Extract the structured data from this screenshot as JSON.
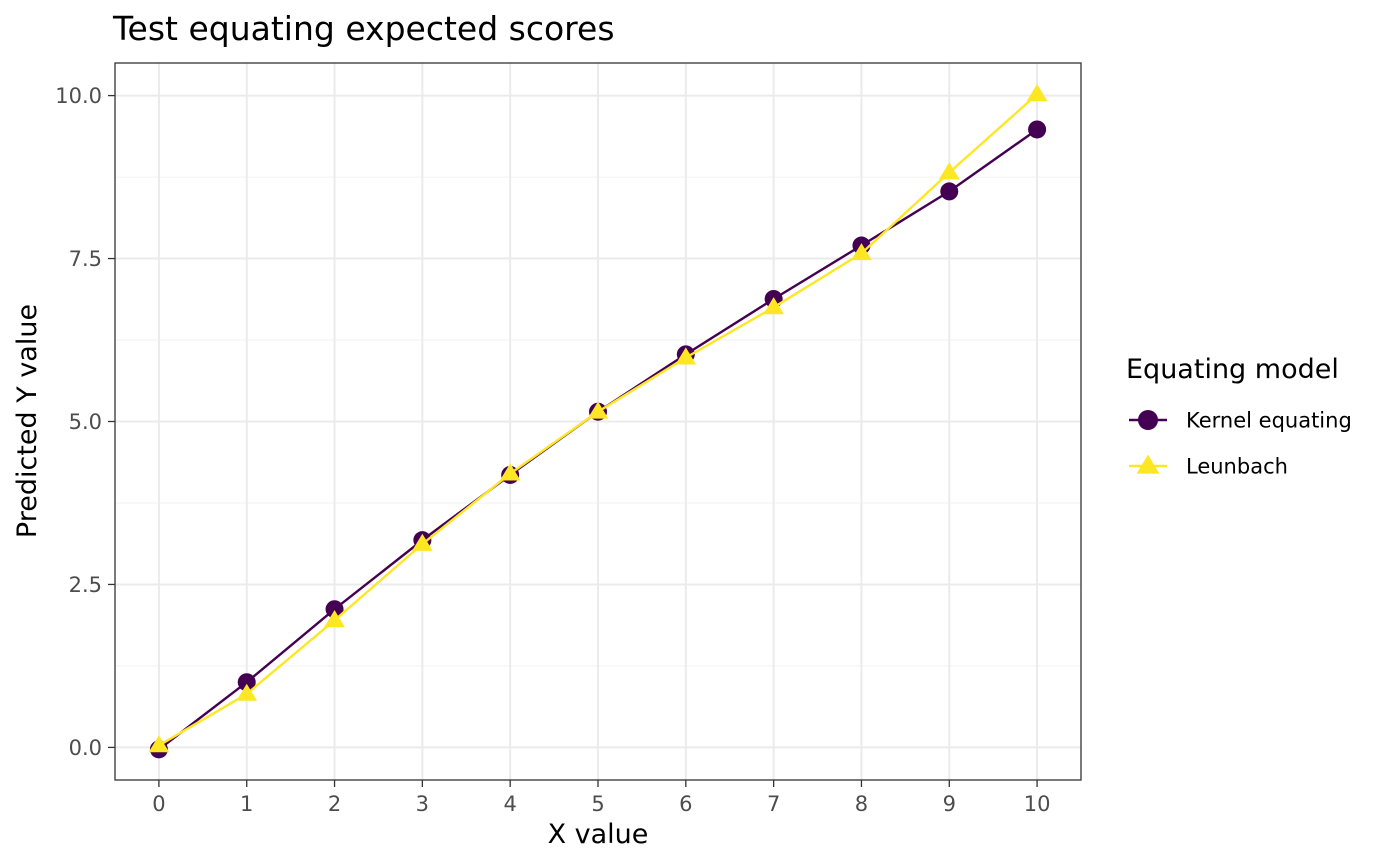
{
  "chart_data": {
    "type": "line",
    "title": "Test equating expected scores",
    "xlabel": "X value",
    "ylabel": "Predicted Y value",
    "x": [
      0,
      1,
      2,
      3,
      4,
      5,
      6,
      7,
      8,
      9,
      10
    ],
    "xticks": [
      "0",
      "1",
      "2",
      "3",
      "4",
      "5",
      "6",
      "7",
      "8",
      "9",
      "10"
    ],
    "yticks": [
      "0.0",
      "2.5",
      "5.0",
      "7.5",
      "10.0"
    ],
    "ylim": [
      -0.5,
      10.5
    ],
    "grid": true,
    "legend": {
      "title": "Equating model",
      "position": "right"
    },
    "series": [
      {
        "name": "Kernel equating",
        "color": "#440154",
        "marker": "circle",
        "values": [
          -0.03,
          1.0,
          2.12,
          3.18,
          4.18,
          5.15,
          6.03,
          6.88,
          7.7,
          8.53,
          9.48
        ]
      },
      {
        "name": "Leunbach",
        "color": "#FDE725",
        "marker": "triangle",
        "values": [
          0.03,
          0.82,
          1.95,
          3.12,
          4.2,
          5.15,
          5.98,
          6.75,
          7.58,
          8.82,
          10.02
        ]
      }
    ]
  }
}
